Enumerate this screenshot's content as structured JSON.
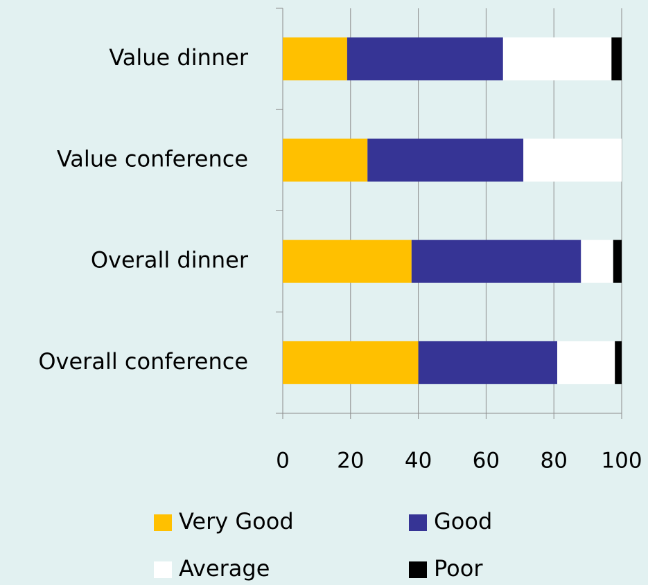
{
  "chart_data": {
    "type": "stacked_bar_horizontal",
    "categories": [
      "Value dinner",
      "Value conference",
      "Overall dinner",
      "Overall conference"
    ],
    "series": [
      {
        "name": "Very Good",
        "color": "#ffc000",
        "values": [
          19,
          25,
          38,
          40
        ]
      },
      {
        "name": "Good",
        "color": "#363495",
        "values": [
          46,
          46,
          50,
          41
        ]
      },
      {
        "name": "Average",
        "color": "#ffffff",
        "values": [
          32,
          29,
          9.5,
          17
        ]
      },
      {
        "name": "Poor",
        "color": "#000000",
        "values": [
          3,
          0,
          2.5,
          2
        ]
      }
    ],
    "xlim": [
      0,
      100
    ],
    "xticks": [
      0,
      20,
      40,
      60,
      80,
      100
    ],
    "grid": true
  }
}
